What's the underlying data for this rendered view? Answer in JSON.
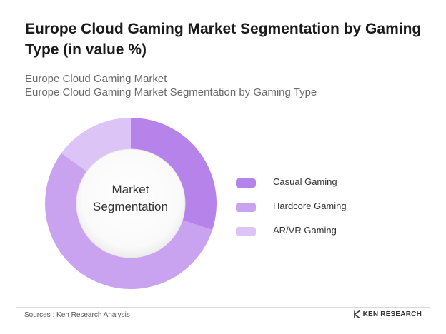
{
  "title": "Europe Cloud Gaming Market Segmentation by Gaming Type (in value %)",
  "subtitle_line1": "Europe Cloud Gaming Market",
  "subtitle_line2": "Europe Cloud Gaming Market Segmentation by Gaming Type",
  "center_label_line1": "Market",
  "center_label_line2": "Segmentation",
  "source": "Sources : Ken Research Analysis",
  "logo_text": "KEN RESEARCH",
  "colors": {
    "casual": "#b683ea",
    "hardcore": "#c9a3f0",
    "arvr": "#dcc4f6",
    "inner_circle_edge": "#ececec"
  },
  "chart_data": {
    "type": "pie",
    "style": "donut",
    "categories": [
      "Casual Gaming",
      "Hardcore Gaming",
      "AR/VR Gaming"
    ],
    "values": [
      30,
      55,
      15
    ],
    "legend_position": "right",
    "series": [
      {
        "values": [
          30,
          55,
          15
        ]
      }
    ]
  }
}
